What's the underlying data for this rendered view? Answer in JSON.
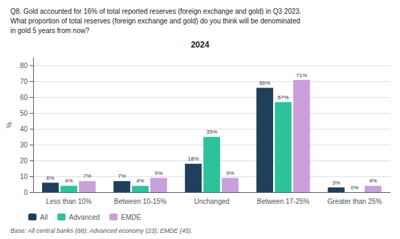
{
  "chart_data": {
    "type": "bar",
    "title": "2024",
    "annotations": [
      "Q8. Gold accounted for 16% of total reported reserves (foreign exchange and gold) in Q3 2023.",
      "What proportion of total reserves (foreign exchange and gold) do you think will be denominated",
      "in gold 5 years from now?"
    ],
    "footnote": "Base: All central banks (68); Advanced economy (23); EMDE (45).",
    "ylabel": "%",
    "categories": [
      "Less than 10%",
      "Between 10-15%",
      "Unchanged",
      "Between 17-25%",
      "Greater than 25%"
    ],
    "series": [
      {
        "name": "All",
        "color": "#1f3f5b",
        "values": [
          6,
          7,
          18,
          66,
          3
        ],
        "value_labels": [
          "6%",
          "7%",
          "18%",
          "66%",
          "3%"
        ]
      },
      {
        "name": "Advanced",
        "color": "#2dc39a",
        "values": [
          4,
          4,
          35,
          57,
          0
        ],
        "value_labels": [
          "4%",
          "4%",
          "35%",
          "57%",
          "0%"
        ]
      },
      {
        "name": "EMDE",
        "color": "#c9a0dc",
        "values": [
          7,
          9,
          9,
          71,
          4
        ],
        "value_labels": [
          "7%",
          "9%",
          "9%",
          "71%",
          "4%"
        ]
      }
    ],
    "ylim": [
      0,
      85
    ],
    "yticks": [
      0,
      10,
      20,
      30,
      40,
      50,
      60,
      70,
      80
    ],
    "grid": true,
    "legend": "bottom",
    "data_labels": true
  }
}
